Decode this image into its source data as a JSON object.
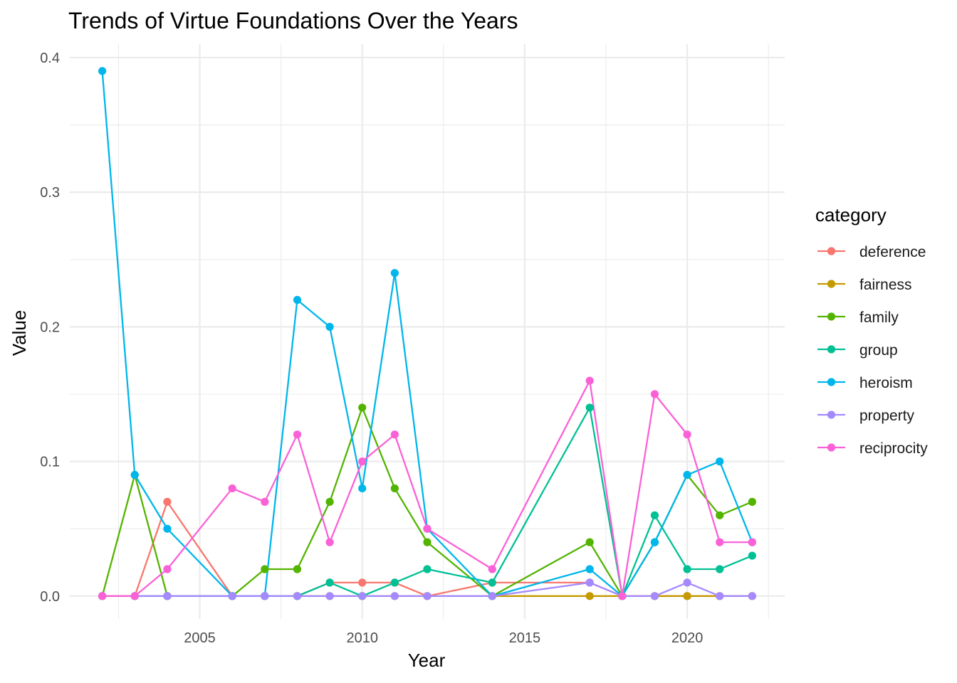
{
  "chart_data": {
    "type": "line",
    "title": "Trends of Virtue Foundations Over the Years",
    "xlabel": "Year",
    "ylabel": "Value",
    "xlim": [
      2001,
      2023
    ],
    "ylim": [
      -0.017,
      0.41
    ],
    "x_ticks": [
      2005,
      2010,
      2015,
      2020
    ],
    "x_tick_labels": [
      "2005",
      "2010",
      "2015",
      "2020"
    ],
    "y_ticks": [
      0.0,
      0.1,
      0.2,
      0.3,
      0.4
    ],
    "y_tick_labels": [
      "0.0",
      "0.1",
      "0.2",
      "0.3",
      "0.4"
    ],
    "grid": true,
    "legend": {
      "title": "category",
      "position": "right"
    },
    "series": [
      {
        "name": "deference",
        "color": "#F8766D",
        "x": [
          2002,
          2003,
          2004,
          2006,
          2007,
          2008,
          2009,
          2010,
          2011,
          2012,
          2014,
          2017,
          2018,
          2019,
          2020,
          2021,
          2022
        ],
        "y": [
          0,
          0,
          0.07,
          0,
          0,
          0,
          0.01,
          0.01,
          0.01,
          0,
          0.01,
          0.01,
          0,
          0,
          0,
          0,
          0
        ]
      },
      {
        "name": "fairness",
        "color": "#C49A00",
        "x": [
          2002,
          2003,
          2004,
          2006,
          2007,
          2008,
          2009,
          2010,
          2011,
          2012,
          2014,
          2017,
          2018,
          2019,
          2020,
          2021,
          2022
        ],
        "y": [
          0,
          0,
          0,
          0,
          0,
          0,
          0,
          0,
          0,
          0,
          0,
          0,
          0,
          0,
          0,
          0,
          0
        ]
      },
      {
        "name": "family",
        "color": "#53B400",
        "x": [
          2002,
          2003,
          2004,
          2006,
          2007,
          2008,
          2009,
          2010,
          2011,
          2012,
          2014,
          2017,
          2018,
          2019,
          2020,
          2021,
          2022
        ],
        "y": [
          0,
          0.09,
          0,
          0,
          0.02,
          0.02,
          0.07,
          0.14,
          0.08,
          0.04,
          0,
          0.04,
          0,
          0.04,
          0.09,
          0.06,
          0.07
        ]
      },
      {
        "name": "group",
        "color": "#00C094",
        "x": [
          2002,
          2003,
          2004,
          2006,
          2007,
          2008,
          2009,
          2010,
          2011,
          2012,
          2014,
          2017,
          2018,
          2019,
          2020,
          2021,
          2022
        ],
        "y": [
          0,
          0,
          0,
          0,
          0,
          0,
          0.01,
          0,
          0.01,
          0.02,
          0.01,
          0.14,
          0,
          0.06,
          0.02,
          0.02,
          0.03
        ]
      },
      {
        "name": "heroism",
        "color": "#00B6EB",
        "x": [
          2002,
          2003,
          2004,
          2006,
          2007,
          2008,
          2009,
          2010,
          2011,
          2012,
          2014,
          2017,
          2018,
          2019,
          2020,
          2021,
          2022
        ],
        "y": [
          0.39,
          0.09,
          0.05,
          0,
          0,
          0.22,
          0.2,
          0.08,
          0.24,
          0.05,
          0,
          0.02,
          0,
          0.04,
          0.09,
          0.1,
          0.04
        ]
      },
      {
        "name": "property",
        "color": "#A58AFF",
        "x": [
          2002,
          2003,
          2004,
          2006,
          2007,
          2008,
          2009,
          2010,
          2011,
          2012,
          2014,
          2017,
          2018,
          2019,
          2020,
          2021,
          2022
        ],
        "y": [
          0,
          0,
          0,
          0,
          0,
          0,
          0,
          0,
          0,
          0,
          0,
          0.01,
          0,
          0,
          0.01,
          0,
          0
        ]
      },
      {
        "name": "reciprocity",
        "color": "#FB61D7",
        "x": [
          2002,
          2003,
          2004,
          2006,
          2007,
          2008,
          2009,
          2010,
          2011,
          2012,
          2014,
          2017,
          2018,
          2019,
          2020,
          2021,
          2022
        ],
        "y": [
          0,
          0,
          0.02,
          0.08,
          0.07,
          0.12,
          0.04,
          0.1,
          0.12,
          0.05,
          0.02,
          0.16,
          0,
          0.15,
          0.12,
          0.04,
          0.04
        ]
      }
    ]
  }
}
